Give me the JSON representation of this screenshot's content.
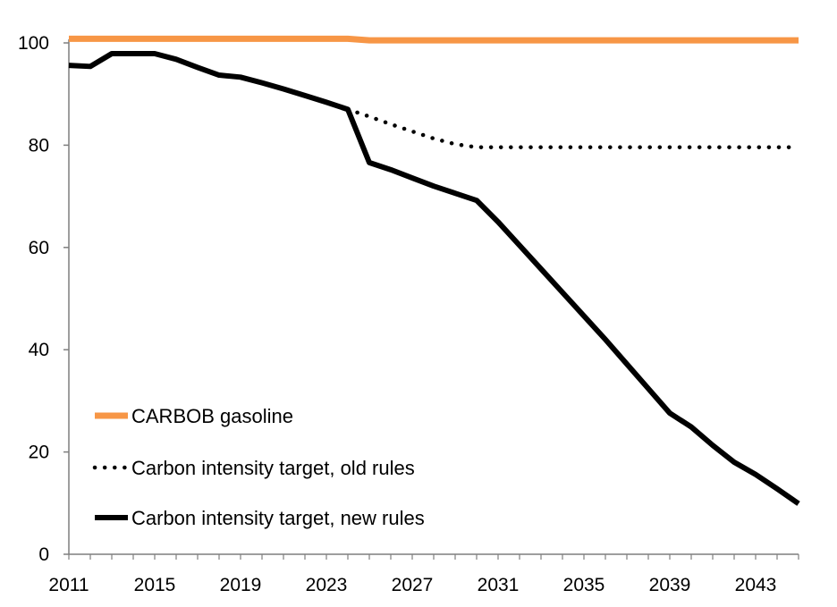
{
  "chart_data": {
    "type": "line",
    "title": "",
    "xlabel": "",
    "ylabel": "",
    "xlim": [
      2011,
      2045
    ],
    "ylim": [
      0,
      100
    ],
    "x_ticks": [
      "2011",
      "2015",
      "2019",
      "2023",
      "2027",
      "2031",
      "2035",
      "2039",
      "2043"
    ],
    "y_ticks": [
      "0",
      "20",
      "40",
      "60",
      "80",
      "100"
    ],
    "grid": false,
    "legend_position": "bottom-left",
    "series": [
      {
        "name": "CARBOB gasoline",
        "color": "#f79646",
        "style": "solid",
        "x": [
          2011,
          2024,
          2025,
          2045
        ],
        "y": [
          100.8,
          100.8,
          100.5,
          100.5
        ]
      },
      {
        "name": "Carbon intensity target, old rules",
        "color": "#000000",
        "style": "dotted",
        "x": [
          2024,
          2025,
          2026,
          2027,
          2028,
          2029,
          2030,
          2045
        ],
        "y": [
          87,
          85.6,
          84.1,
          82.7,
          81.3,
          80.2,
          79.6,
          79.6
        ]
      },
      {
        "name": "Carbon intensity target, new rules",
        "color": "#000000",
        "style": "solid",
        "x": [
          2011,
          2012,
          2013,
          2014,
          2015,
          2016,
          2017,
          2018,
          2019,
          2020,
          2021,
          2022,
          2023,
          2024,
          2025,
          2026,
          2027,
          2028,
          2029,
          2030,
          2031,
          2032,
          2033,
          2034,
          2035,
          2036,
          2037,
          2038,
          2039,
          2040,
          2041,
          2042,
          2043,
          2044,
          2045
        ],
        "y": [
          95.6,
          95.4,
          97.9,
          97.9,
          97.9,
          96.8,
          95.2,
          93.7,
          93.3,
          92.2,
          91.0,
          89.7,
          88.4,
          87.0,
          76.6,
          75.2,
          73.6,
          72.0,
          70.6,
          69.2,
          65.0,
          60.4,
          55.8,
          51.2,
          46.6,
          42.0,
          37.2,
          32.4,
          27.6,
          24.9,
          21.3,
          18.0,
          15.6,
          12.8,
          9.9
        ]
      }
    ]
  }
}
